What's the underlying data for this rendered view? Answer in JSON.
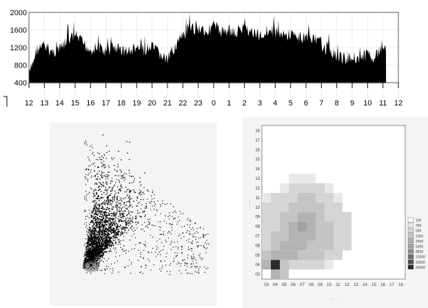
{
  "chart_data": [
    {
      "type": "area",
      "ylim": [
        400,
        2000
      ],
      "y_ticks": [
        "2000",
        "1600",
        "1200",
        "800",
        "400"
      ],
      "x_ticks": [
        "12",
        "13",
        "14",
        "15",
        "16",
        "17",
        "18",
        "19",
        "20",
        "21",
        "22",
        "23",
        "0",
        "1",
        "2",
        "3",
        "4",
        "5",
        "6",
        "7",
        "8",
        "9",
        "10",
        "11",
        "12"
      ],
      "baseline": 400,
      "envelope": {
        "x": [
          0,
          0.5,
          1,
          1.5,
          2,
          2.5,
          3,
          3.5,
          4,
          4.5,
          5,
          5.5,
          6,
          6.5,
          7,
          7.5,
          8,
          8.5,
          9,
          9.5,
          10,
          10.5,
          11,
          11.5,
          12,
          12.5,
          13,
          13.5,
          14,
          14.5,
          15,
          15.5,
          16,
          16.5,
          17,
          17.5,
          18,
          18.5,
          19,
          19.5,
          20,
          20.5,
          21,
          21.5,
          22,
          22.5,
          23,
          23.2
        ],
        "y": [
          700,
          1300,
          1380,
          1250,
          1300,
          1500,
          1620,
          1450,
          1300,
          1350,
          1250,
          1350,
          1300,
          1250,
          1350,
          1280,
          1350,
          1200,
          1050,
          1400,
          1600,
          1750,
          1800,
          1700,
          1850,
          1700,
          1750,
          1650,
          1800,
          1700,
          1600,
          1750,
          1700,
          1600,
          1650,
          1550,
          1600,
          1550,
          1400,
          1300,
          1150,
          1100,
          1150,
          1100,
          1200,
          1150,
          1350,
          1400
        ]
      },
      "grid": "dotted"
    },
    {
      "type": "scatter"
    },
    {
      "type": "heatmap",
      "x_ticks": [
        "03",
        "04",
        "05",
        "06",
        "07",
        "08",
        "09",
        "10",
        "11",
        "12",
        "13",
        "14",
        "15",
        "16",
        "17",
        "18"
      ],
      "y_ticks": [
        "03",
        "04",
        "05",
        "06",
        "07",
        "08",
        "09",
        "10",
        "11",
        "12",
        "13",
        "14",
        "15",
        "16",
        "17",
        "18"
      ],
      "legend_labels": [
        "100",
        "250",
        "500",
        "1000",
        "2500",
        "5000",
        "8500",
        "12000",
        "20000",
        "24000"
      ],
      "legend_colors": [
        "#fbfbfb",
        "#e8e8e8",
        "#d5d5d5",
        "#c4c4c4",
        "#b3b3b3",
        "#a2a2a2",
        "#8c8c8c",
        "#707070",
        "#505050",
        "#2a2a2a"
      ],
      "cells": [
        {
          "x": "04",
          "y": "03",
          "level": 4
        },
        {
          "x": "05",
          "y": "03",
          "level": 3
        },
        {
          "x": "03",
          "y": "04",
          "level": 4
        },
        {
          "x": "04",
          "y": "04",
          "level": 9
        },
        {
          "x": "05",
          "y": "04",
          "level": 3
        },
        {
          "x": "06",
          "y": "04",
          "level": 2
        },
        {
          "x": "07",
          "y": "04",
          "level": 2
        },
        {
          "x": "08",
          "y": "04",
          "level": 2
        },
        {
          "x": "09",
          "y": "04",
          "level": 2
        },
        {
          "x": "10",
          "y": "04",
          "level": 1
        },
        {
          "x": "03",
          "y": "05",
          "level": 3
        },
        {
          "x": "04",
          "y": "05",
          "level": 4
        },
        {
          "x": "05",
          "y": "05",
          "level": 4
        },
        {
          "x": "06",
          "y": "05",
          "level": 4
        },
        {
          "x": "07",
          "y": "05",
          "level": 3
        },
        {
          "x": "08",
          "y": "05",
          "level": 3
        },
        {
          "x": "09",
          "y": "05",
          "level": 3
        },
        {
          "x": "10",
          "y": "05",
          "level": 2
        },
        {
          "x": "11",
          "y": "05",
          "level": 2
        },
        {
          "x": "03",
          "y": "06",
          "level": 2
        },
        {
          "x": "04",
          "y": "06",
          "level": 3
        },
        {
          "x": "05",
          "y": "06",
          "level": 4
        },
        {
          "x": "06",
          "y": "06",
          "level": 4
        },
        {
          "x": "07",
          "y": "06",
          "level": 4
        },
        {
          "x": "08",
          "y": "06",
          "level": 3
        },
        {
          "x": "09",
          "y": "06",
          "level": 3
        },
        {
          "x": "10",
          "y": "06",
          "level": 3
        },
        {
          "x": "11",
          "y": "06",
          "level": 2
        },
        {
          "x": "12",
          "y": "06",
          "level": 2
        },
        {
          "x": "03",
          "y": "07",
          "level": 2
        },
        {
          "x": "04",
          "y": "07",
          "level": 3
        },
        {
          "x": "05",
          "y": "07",
          "level": 3
        },
        {
          "x": "06",
          "y": "07",
          "level": 4
        },
        {
          "x": "07",
          "y": "07",
          "level": 4
        },
        {
          "x": "08",
          "y": "07",
          "level": 4
        },
        {
          "x": "09",
          "y": "07",
          "level": 3
        },
        {
          "x": "10",
          "y": "07",
          "level": 3
        },
        {
          "x": "11",
          "y": "07",
          "level": 2
        },
        {
          "x": "12",
          "y": "07",
          "level": 2
        },
        {
          "x": "03",
          "y": "08",
          "level": 2
        },
        {
          "x": "04",
          "y": "08",
          "level": 2
        },
        {
          "x": "05",
          "y": "08",
          "level": 3
        },
        {
          "x": "06",
          "y": "08",
          "level": 4
        },
        {
          "x": "07",
          "y": "08",
          "level": 5
        },
        {
          "x": "08",
          "y": "08",
          "level": 4
        },
        {
          "x": "09",
          "y": "08",
          "level": 3
        },
        {
          "x": "10",
          "y": "08",
          "level": 3
        },
        {
          "x": "11",
          "y": "08",
          "level": 2
        },
        {
          "x": "12",
          "y": "08",
          "level": 2
        },
        {
          "x": "03",
          "y": "09",
          "level": 2
        },
        {
          "x": "04",
          "y": "09",
          "level": 2
        },
        {
          "x": "05",
          "y": "09",
          "level": 3
        },
        {
          "x": "06",
          "y": "09",
          "level": 3
        },
        {
          "x": "07",
          "y": "09",
          "level": 4
        },
        {
          "x": "08",
          "y": "09",
          "level": 4
        },
        {
          "x": "09",
          "y": "09",
          "level": 3
        },
        {
          "x": "10",
          "y": "09",
          "level": 2
        },
        {
          "x": "11",
          "y": "09",
          "level": 2
        },
        {
          "x": "12",
          "y": "09",
          "level": 2
        },
        {
          "x": "03",
          "y": "10",
          "level": 2
        },
        {
          "x": "04",
          "y": "10",
          "level": 2
        },
        {
          "x": "05",
          "y": "10",
          "level": 2
        },
        {
          "x": "06",
          "y": "10",
          "level": 3
        },
        {
          "x": "07",
          "y": "10",
          "level": 3
        },
        {
          "x": "08",
          "y": "10",
          "level": 3
        },
        {
          "x": "09",
          "y": "10",
          "level": 3
        },
        {
          "x": "10",
          "y": "10",
          "level": 2
        },
        {
          "x": "11",
          "y": "10",
          "level": 2
        },
        {
          "x": "03",
          "y": "11",
          "level": 1
        },
        {
          "x": "04",
          "y": "11",
          "level": 2
        },
        {
          "x": "05",
          "y": "11",
          "level": 2
        },
        {
          "x": "06",
          "y": "11",
          "level": 2
        },
        {
          "x": "07",
          "y": "11",
          "level": 3
        },
        {
          "x": "08",
          "y": "11",
          "level": 3
        },
        {
          "x": "09",
          "y": "11",
          "level": 2
        },
        {
          "x": "10",
          "y": "11",
          "level": 2
        },
        {
          "x": "11",
          "y": "11",
          "level": 1
        },
        {
          "x": "05",
          "y": "12",
          "level": 1
        },
        {
          "x": "06",
          "y": "12",
          "level": 2
        },
        {
          "x": "07",
          "y": "12",
          "level": 2
        },
        {
          "x": "08",
          "y": "12",
          "level": 2
        },
        {
          "x": "09",
          "y": "12",
          "level": 2
        },
        {
          "x": "10",
          "y": "12",
          "level": 1
        },
        {
          "x": "06",
          "y": "13",
          "level": 1
        },
        {
          "x": "07",
          "y": "13",
          "level": 1
        },
        {
          "x": "08",
          "y": "13",
          "level": 1
        }
      ]
    }
  ]
}
